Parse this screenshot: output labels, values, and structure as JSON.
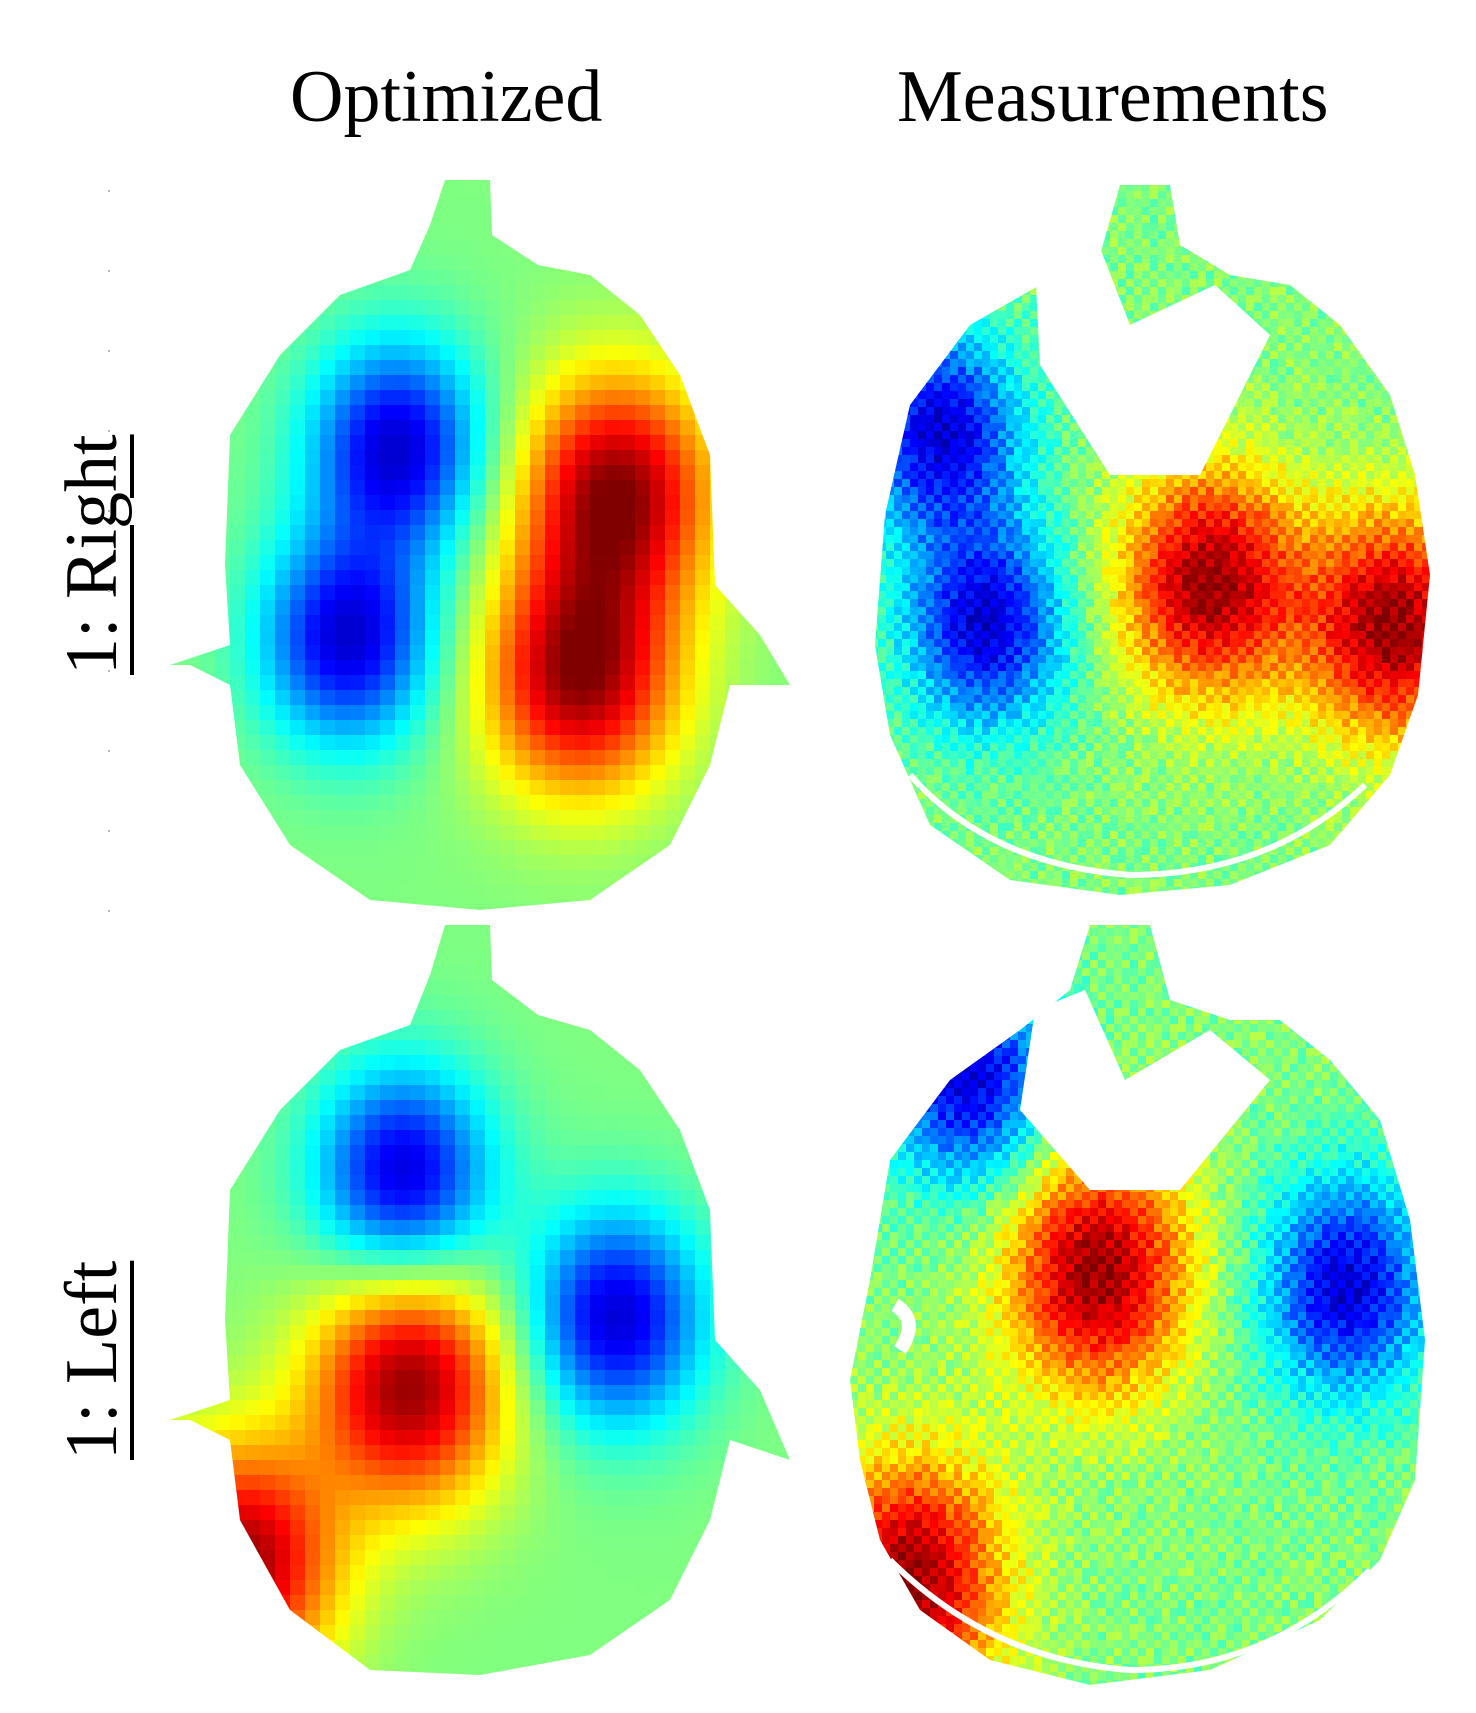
{
  "columns": {
    "optimized": "Optimized",
    "measurements": "Measurements"
  },
  "rows": {
    "right": "1: Right",
    "left": "1: Left"
  },
  "colormap": [
    "#00008f",
    "#0000ff",
    "#0080ff",
    "#00ffff",
    "#80ff80",
    "#ffff00",
    "#ff8000",
    "#ff0000",
    "#800000"
  ],
  "panels": [
    {
      "id": "opt-right",
      "hot": [
        [
          0.66,
          0.68
        ],
        [
          0.72,
          0.43
        ]
      ],
      "cold": [
        [
          0.28,
          0.63
        ],
        [
          0.36,
          0.37
        ]
      ]
    },
    {
      "id": "meas-right",
      "hot": [
        [
          0.6,
          0.56
        ],
        [
          0.93,
          0.62
        ]
      ],
      "cold": [
        [
          0.12,
          0.35
        ],
        [
          0.2,
          0.62
        ]
      ]
    },
    {
      "id": "opt-left",
      "hot": [
        [
          0.38,
          0.61
        ],
        [
          0.1,
          0.85
        ]
      ],
      "cold": [
        [
          0.37,
          0.33
        ],
        [
          0.72,
          0.52
        ]
      ]
    },
    {
      "id": "meas-left",
      "hot": [
        [
          0.42,
          0.45
        ],
        [
          0.1,
          0.85
        ]
      ],
      "cold": [
        [
          0.85,
          0.47
        ],
        [
          0.2,
          0.2
        ]
      ]
    }
  ]
}
